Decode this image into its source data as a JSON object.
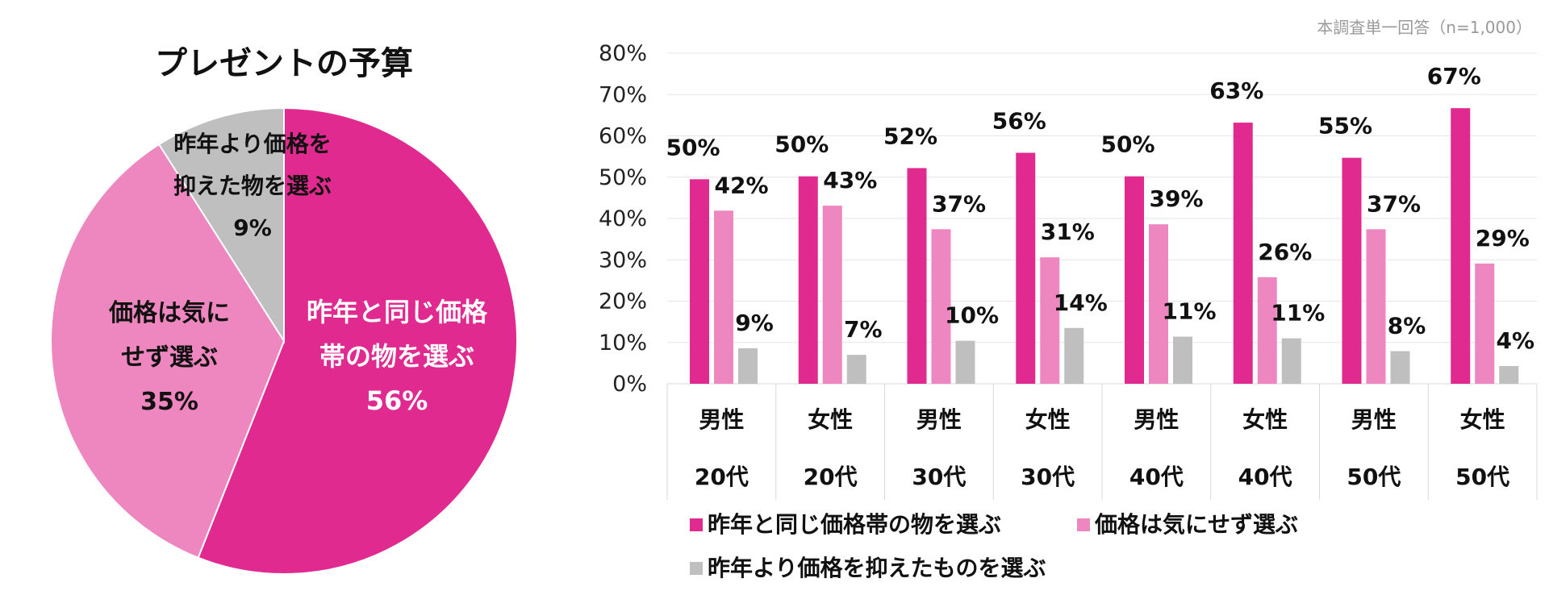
{
  "note": "本調査単一回答（n=1,000）",
  "chart_data": [
    {
      "type": "pie",
      "title": "プレゼントの予算",
      "slices": [
        {
          "label_lines": [
            "昨年と同じ価格",
            "帯の物を選ぶ"
          ],
          "value": 56,
          "value_label": "56%",
          "color": "#E12A8F",
          "label_color": "#ffffff"
        },
        {
          "label_lines": [
            "価格は気に",
            "せず選ぶ"
          ],
          "value": 35,
          "value_label": "35%",
          "color": "#EE86BF",
          "label_color": "#111111"
        },
        {
          "label_lines": [
            "昨年より価格を",
            "抑えた物を選ぶ"
          ],
          "value": 9,
          "value_label": "9%",
          "color": "#BFBFBF",
          "label_color": "#111111"
        }
      ],
      "start": "12 o'clock",
      "direction": "clockwise"
    },
    {
      "type": "bar",
      "ylim": [
        0,
        80
      ],
      "yticks": [
        "0%",
        "10%",
        "20%",
        "30%",
        "40%",
        "50%",
        "60%",
        "70%",
        "80%"
      ],
      "grid": true,
      "categories": [
        {
          "gender": "男性",
          "age": "20代"
        },
        {
          "gender": "女性",
          "age": "20代"
        },
        {
          "gender": "男性",
          "age": "30代"
        },
        {
          "gender": "女性",
          "age": "30代"
        },
        {
          "gender": "男性",
          "age": "40代"
        },
        {
          "gender": "女性",
          "age": "40代"
        },
        {
          "gender": "男性",
          "age": "50代"
        },
        {
          "gender": "女性",
          "age": "50代"
        }
      ],
      "series": [
        {
          "name": "昨年と同じ価格帯の物を選ぶ",
          "color": "#E12A8F",
          "values": [
            49.5,
            50.2,
            52.2,
            55.9,
            50.2,
            63.2,
            54.7,
            66.7
          ],
          "labels": [
            "50%",
            "50%",
            "52%",
            "56%",
            "50%",
            "63%",
            "55%",
            "67%"
          ]
        },
        {
          "name": "価格は気にせず選ぶ",
          "color": "#EE86BF",
          "values": [
            41.9,
            43.1,
            37.4,
            30.6,
            38.6,
            25.8,
            37.4,
            29.1
          ],
          "labels": [
            "42%",
            "43%",
            "37%",
            "31%",
            "39%",
            "26%",
            "37%",
            "29%"
          ]
        },
        {
          "name": "昨年より価格を抑えたものを選ぶ",
          "color": "#BFBFBF",
          "values": [
            8.6,
            7.0,
            10.4,
            13.5,
            11.4,
            11.0,
            7.9,
            4.3
          ],
          "labels": [
            "9%",
            "7%",
            "10%",
            "14%",
            "11%",
            "11%",
            "8%",
            "4%"
          ]
        }
      ],
      "legend_position": "bottom"
    }
  ]
}
